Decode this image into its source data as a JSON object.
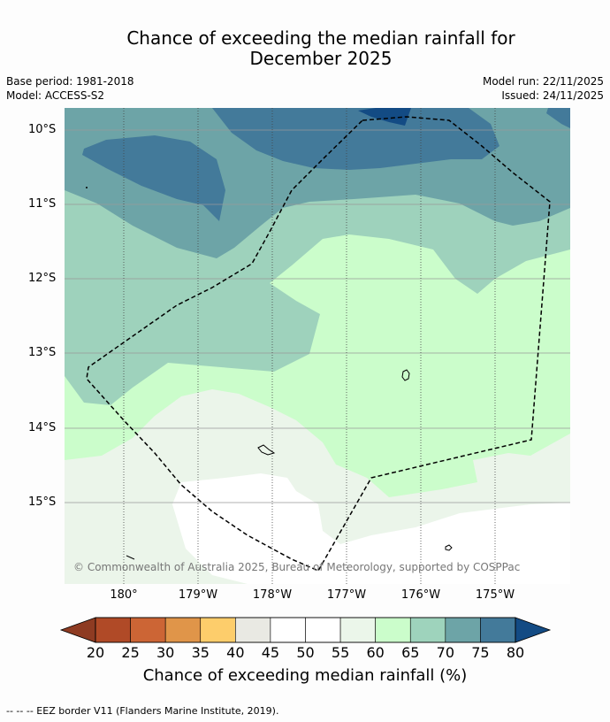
{
  "title": {
    "line1": "Chance of exceeding the median rainfall for",
    "line2": "December 2025"
  },
  "meta": {
    "base_period": "Base period: 1981-2018",
    "model": "Model: ACCESS-S2",
    "model_run": "Model run: 22/11/2025",
    "issued": "Issued: 24/11/2025"
  },
  "map": {
    "lat_labels": [
      "10°S",
      "11°S",
      "12°S",
      "13°S",
      "14°S",
      "15°S"
    ],
    "lon_labels": [
      "180°",
      "179°W",
      "178°W",
      "177°W",
      "176°W",
      "175°W"
    ],
    "copyright": "© Commonwealth of Australia 2025, Bureau of Meteorology, supported by COSPPac"
  },
  "colorbar": {
    "ticks": [
      "20",
      "25",
      "30",
      "35",
      "40",
      "45",
      "50",
      "55",
      "60",
      "65",
      "70",
      "75",
      "80"
    ],
    "colors": [
      "#b04a27",
      "#cc6535",
      "#e09549",
      "#fdcd6b",
      "#e9e9e3",
      "#ffffff",
      "#ffffff",
      "#ebf6ea",
      "#cbfdcb",
      "#9ed3bc",
      "#6da4a7",
      "#437a9a"
    ],
    "low_color": "#8e3b22",
    "high_color": "#134b84",
    "label": "Chance of exceeding median rainfall (%)"
  },
  "footer": "--  --  -- EEZ border V11 (Flanders Marine Institute, 2019)."
}
